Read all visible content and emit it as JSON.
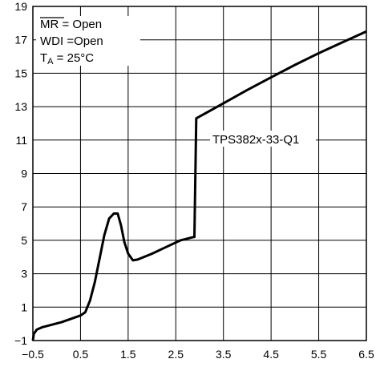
{
  "chart_data": {
    "type": "line",
    "title": "",
    "xlabel": "",
    "ylabel": "",
    "xlim": [
      -0.5,
      6.5
    ],
    "ylim": [
      -1,
      19
    ],
    "x_ticks": [
      -0.5,
      0.5,
      1.5,
      2.5,
      3.5,
      4.5,
      5.5,
      6.5
    ],
    "x_tick_labels": [
      "−0.5",
      "0.5",
      "1.5",
      "2.5",
      "3.5",
      "4.5",
      "5.5",
      "6.5"
    ],
    "y_ticks": [
      -1,
      1,
      3,
      5,
      7,
      9,
      11,
      13,
      15,
      17,
      19
    ],
    "y_tick_labels": [
      "−1",
      "1",
      "3",
      "5",
      "7",
      "9",
      "11",
      "13",
      "15",
      "17",
      "19"
    ],
    "grid": true,
    "conditions": {
      "line1_bar": "MR",
      "line1_rest": " = Open",
      "line2": "WDI =Open",
      "line3_t": "T",
      "line3_sub": "A",
      "line3_rest": " = 25°C"
    },
    "series": [
      {
        "name": "TPS382x-33-Q1",
        "x": [
          -0.5,
          -0.48,
          -0.42,
          -0.3,
          -0.1,
          0.1,
          0.3,
          0.5,
          0.6,
          0.7,
          0.8,
          0.9,
          1.0,
          1.1,
          1.2,
          1.28,
          1.35,
          1.42,
          1.5,
          1.6,
          1.7,
          2.0,
          2.3,
          2.6,
          2.88,
          2.89,
          2.93,
          3.5,
          4.0,
          4.5,
          5.0,
          5.5,
          6.0,
          6.5
        ],
        "y": [
          -1,
          -0.6,
          -0.35,
          -0.2,
          -0.05,
          0.1,
          0.3,
          0.5,
          0.7,
          1.4,
          2.5,
          3.9,
          5.3,
          6.3,
          6.6,
          6.6,
          5.9,
          4.9,
          4.2,
          3.8,
          3.85,
          4.2,
          4.6,
          5.0,
          5.2,
          5.2,
          12.3,
          13.2,
          14.0,
          14.75,
          15.5,
          16.2,
          16.85,
          17.5
        ]
      }
    ],
    "annotations": [
      {
        "text": "TPS382x-33-Q1",
        "x": 3.3,
        "y": 11
      }
    ]
  }
}
